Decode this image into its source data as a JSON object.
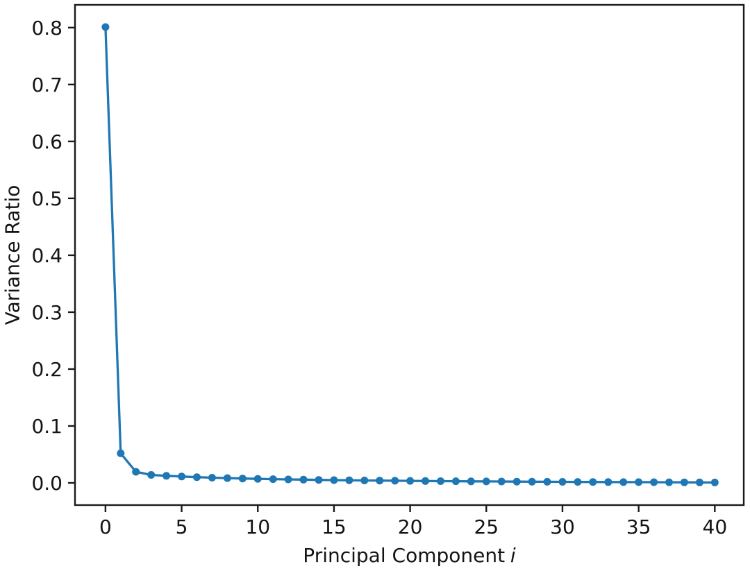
{
  "chart_data": {
    "type": "line",
    "title": "",
    "xlabel_text": "Principal Component",
    "xlabel_var": "i",
    "ylabel": "Variance Ratio",
    "x": [
      0,
      1,
      2,
      3,
      4,
      5,
      6,
      7,
      8,
      9,
      10,
      11,
      12,
      13,
      14,
      15,
      16,
      17,
      18,
      19,
      20,
      21,
      22,
      23,
      24,
      25,
      26,
      27,
      28,
      29,
      30,
      31,
      32,
      33,
      34,
      35,
      36,
      37,
      38,
      39,
      40
    ],
    "values": [
      0.801,
      0.052,
      0.0195,
      0.014,
      0.0125,
      0.0112,
      0.0101,
      0.0092,
      0.0084,
      0.0077,
      0.0071,
      0.0066,
      0.0061,
      0.0057,
      0.0053,
      0.0049,
      0.0046,
      0.0043,
      0.004,
      0.0038,
      0.0035,
      0.0033,
      0.0031,
      0.0029,
      0.0027,
      0.0026,
      0.0024,
      0.0022,
      0.0021,
      0.002,
      0.0018,
      0.0017,
      0.0016,
      0.0015,
      0.0014,
      0.0013,
      0.0012,
      0.0011,
      0.001,
      0.0009,
      0.0008
    ],
    "xlim": [
      -2,
      41.9
    ],
    "ylim": [
      -0.039,
      0.84
    ],
    "xticks": [
      0,
      5,
      10,
      15,
      20,
      25,
      30,
      35,
      40
    ],
    "xtick_labels": [
      "0",
      "5",
      "10",
      "15",
      "20",
      "25",
      "30",
      "35",
      "40"
    ],
    "yticks": [
      0.0,
      0.1,
      0.2,
      0.3,
      0.4,
      0.5,
      0.6,
      0.7,
      0.8
    ],
    "ytick_labels": [
      "0.0",
      "0.1",
      "0.2",
      "0.3",
      "0.4",
      "0.5",
      "0.6",
      "0.7",
      "0.8"
    ],
    "line_color": "#1f77b4",
    "marker": "circle",
    "grid": false,
    "colors": {
      "axis": "#1a1a1a",
      "text": "#141414",
      "background": "#ffffff"
    }
  }
}
